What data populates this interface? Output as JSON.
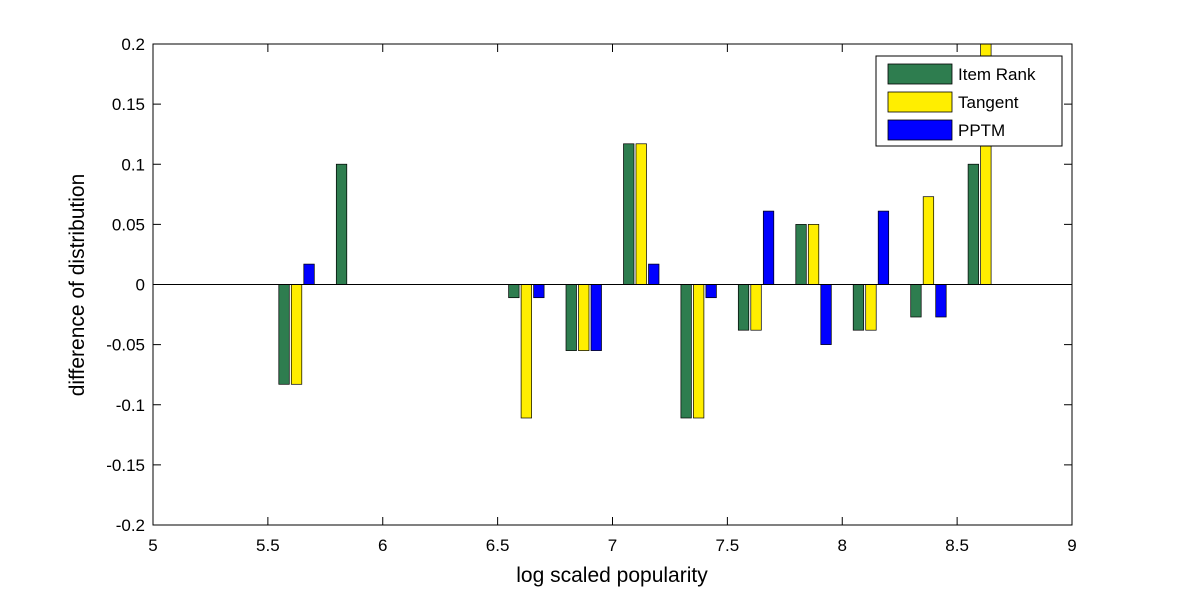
{
  "chart_data": {
    "type": "bar",
    "title": "",
    "xlabel": "log scaled popularity",
    "ylabel": "difference of distribution",
    "xlim": [
      5,
      9
    ],
    "ylim": [
      -0.2,
      0.2
    ],
    "xticks": [
      "5",
      "5.5",
      "6",
      "6.5",
      "7",
      "7.5",
      "8",
      "8.5",
      "9"
    ],
    "yticks": [
      "-0.2",
      "-0.15",
      "-0.1",
      "-0.05",
      "0",
      "0.05",
      "0.1",
      "0.15",
      "0.2"
    ],
    "grid": false,
    "legend_position": "top-right",
    "x": [
      5.625,
      5.875,
      6.125,
      6.375,
      6.625,
      6.875,
      7.125,
      7.375,
      7.625,
      7.875,
      8.125,
      8.375,
      8.625
    ],
    "series": [
      {
        "name": "Item Rank",
        "color": "#2e7d4f",
        "values": [
          -0.083,
          0.1,
          0,
          0,
          -0.011,
          -0.055,
          0.117,
          -0.111,
          -0.038,
          0.05,
          -0.038,
          -0.027,
          0.1
        ]
      },
      {
        "name": "Tangent",
        "color": "#ffee00",
        "values": [
          -0.083,
          0,
          0,
          0,
          -0.111,
          -0.055,
          0.117,
          -0.111,
          -0.038,
          0.05,
          -0.038,
          0.073,
          0.2
        ]
      },
      {
        "name": "PPTM",
        "color": "#0000ff",
        "values": [
          0.017,
          0,
          0,
          0,
          -0.011,
          -0.055,
          0.017,
          -0.011,
          0.061,
          -0.05,
          0.061,
          -0.027,
          0
        ]
      }
    ]
  }
}
